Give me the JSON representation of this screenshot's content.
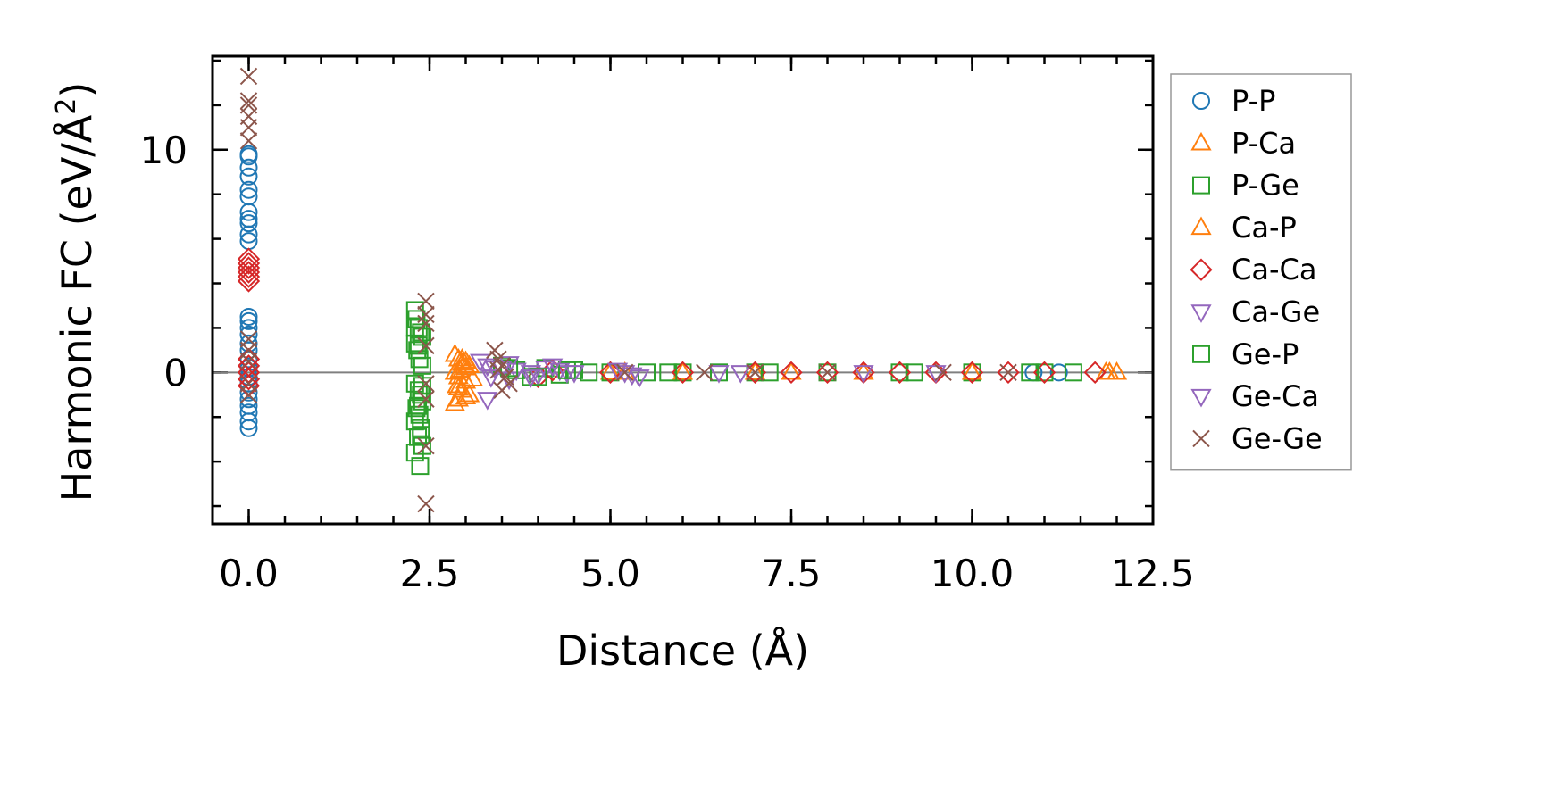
{
  "chart_data": {
    "type": "scatter",
    "xlabel": "Distance (Å)",
    "ylabel": "Harmonic FC (eV/Å²)",
    "ylabel_main": "Harmonic FC (eV/Å",
    "ylabel_sup": "2",
    "ylabel_close": ")",
    "xlim": [
      -0.5,
      12.5
    ],
    "ylim": [
      -6.8,
      14.2
    ],
    "x_ticks": [
      {
        "value": 0.0,
        "label": "0.0"
      },
      {
        "value": 2.5,
        "label": "2.5"
      },
      {
        "value": 5.0,
        "label": "5.0"
      },
      {
        "value": 7.5,
        "label": "7.5"
      },
      {
        "value": 10.0,
        "label": "10.0"
      },
      {
        "value": 12.5,
        "label": "12.5"
      }
    ],
    "y_ticks": [
      {
        "value": 0,
        "label": "0"
      },
      {
        "value": 10,
        "label": "10"
      }
    ],
    "x_minor_step": 0.5,
    "y_minor_step": 2,
    "zero_line": true,
    "grid": false,
    "legend_position": "outside-right",
    "series": [
      {
        "name": "P-P",
        "marker": "circle",
        "color": "#1f77b4",
        "x": [
          0,
          0,
          0,
          0,
          0,
          0,
          0,
          0,
          0,
          0,
          0,
          0,
          0,
          0,
          0,
          0,
          0,
          0,
          0,
          0,
          0,
          0,
          0,
          0,
          0,
          0,
          0,
          10.85,
          11.2
        ],
        "y": [
          9.8,
          9.7,
          9.2,
          8.8,
          8.2,
          7.9,
          7.2,
          6.9,
          6.7,
          6.2,
          5.9,
          2.5,
          2.3,
          2.0,
          1.7,
          1.3,
          1.0,
          0.6,
          0.2,
          -0.2,
          -0.5,
          -0.9,
          -1.2,
          -1.5,
          -1.8,
          -2.2,
          -2.5,
          0,
          0
        ]
      },
      {
        "name": "P-Ca",
        "marker": "triangle-up",
        "color": "#ff7f0e",
        "x": [
          2.85,
          2.9,
          2.95,
          3.0,
          2.85,
          2.9,
          3.0,
          2.88,
          2.95,
          3.05,
          2.9,
          3.0,
          2.85,
          2.92,
          5.0,
          7.5,
          11.9,
          12.0
        ],
        "y": [
          0.8,
          0.6,
          0.4,
          0.2,
          0.0,
          -0.2,
          -0.4,
          -0.6,
          -0.8,
          -1.0,
          -1.2,
          0.5,
          -1.4,
          0.1,
          0,
          0,
          0,
          0
        ]
      },
      {
        "name": "P-Ge",
        "marker": "square",
        "color": "#2ca02c",
        "x": [
          2.3,
          2.32,
          2.35,
          2.38,
          2.4,
          2.3,
          2.33,
          2.36,
          2.4,
          2.3,
          2.35,
          2.38,
          2.4,
          2.32,
          2.36,
          2.3,
          2.38,
          2.34,
          2.4,
          2.3,
          2.37,
          3.5,
          3.7,
          3.9,
          4.1,
          4.3,
          4.5,
          4.7,
          5.0,
          5.5,
          6.0,
          6.5,
          7.0,
          8.0,
          9.0,
          10.0,
          11.0,
          11.4
        ],
        "y": [
          2.8,
          2.4,
          2.0,
          1.8,
          1.6,
          1.3,
          1.0,
          0.6,
          0.3,
          -0.5,
          -0.8,
          -1.0,
          -1.3,
          -1.6,
          -1.9,
          -2.2,
          -2.5,
          -2.9,
          -3.3,
          -3.6,
          -4.2,
          0.3,
          0.1,
          -0.2,
          0.2,
          -0.1,
          0.1,
          0,
          0,
          0,
          0,
          0,
          0,
          0,
          0,
          0,
          0,
          0
        ]
      },
      {
        "name": "Ca-P",
        "marker": "triangle-up",
        "color": "#ff7f0e",
        "x": [
          2.95,
          3.05,
          3.1,
          2.9,
          3.0,
          5.2,
          6.0,
          7.0,
          8.5,
          10.0,
          11.85
        ],
        "y": [
          0.6,
          0.3,
          -0.3,
          -0.7,
          -1.1,
          0,
          0,
          0,
          0,
          0,
          0
        ]
      },
      {
        "name": "Ca-Ca",
        "marker": "diamond",
        "color": "#d62728",
        "x": [
          0,
          0,
          0,
          0,
          0,
          0,
          0,
          0,
          0,
          0,
          0,
          4.0,
          4.2,
          5.0,
          6.0,
          7.0,
          7.5,
          8.0,
          8.5,
          9.0,
          9.5,
          10.0,
          10.5,
          11.0,
          11.7
        ],
        "y": [
          5.1,
          4.9,
          4.7,
          4.5,
          4.3,
          4.1,
          0.6,
          0.3,
          0.0,
          -0.3,
          -0.6,
          -0.2,
          0.1,
          0,
          0,
          0,
          0,
          0,
          0,
          0,
          0,
          0,
          0,
          0,
          0
        ]
      },
      {
        "name": "Ca-Ge",
        "marker": "triangle-down",
        "color": "#9467bd",
        "x": [
          3.2,
          3.3,
          3.5,
          3.7,
          3.9,
          4.1,
          4.3,
          3.35,
          3.6,
          4.0,
          4.4,
          5.2,
          5.4,
          6.5,
          8.5
        ],
        "y": [
          0.5,
          0.3,
          0.2,
          0.1,
          0.0,
          0.2,
          0.1,
          -0.2,
          -0.3,
          -0.1,
          0.0,
          0.0,
          -0.2,
          0,
          0
        ]
      },
      {
        "name": "Ge-P",
        "marker": "square",
        "color": "#2ca02c",
        "x": [
          2.3,
          2.35,
          2.4,
          2.34,
          2.38,
          3.6,
          4.0,
          4.4,
          5.8,
          7.2,
          9.2,
          10.8
        ],
        "y": [
          2.0,
          1.2,
          -0.6,
          -1.5,
          -2.8,
          0.2,
          -0.2,
          0.1,
          0,
          0,
          0,
          0
        ]
      },
      {
        "name": "Ge-Ca",
        "marker": "triangle-down",
        "color": "#9467bd",
        "x": [
          3.3,
          3.4,
          3.6,
          3.9,
          4.2,
          4.5,
          5.1,
          5.3,
          6.8,
          9.5
        ],
        "y": [
          -1.2,
          0.2,
          0.4,
          -0.2,
          0.3,
          0.0,
          0.1,
          -0.1,
          0,
          0
        ]
      },
      {
        "name": "Ge-Ge",
        "marker": "x",
        "color": "#8c564b",
        "x": [
          0,
          0,
          0,
          0,
          0,
          0,
          0,
          0,
          0,
          0,
          0,
          2.45,
          2.45,
          2.45,
          2.45,
          2.45,
          2.45,
          2.45,
          2.45,
          3.4,
          3.45,
          3.5,
          3.55,
          3.6,
          3.5,
          3.45,
          5.2,
          6.3,
          7.0,
          8.0,
          9.6,
          10.5
        ],
        "y": [
          13.3,
          12.2,
          12.0,
          11.5,
          11.0,
          10.4,
          1.5,
          1.0,
          0.5,
          -0.5,
          -1.0,
          3.2,
          2.6,
          2.2,
          1.2,
          -0.5,
          -1.2,
          -3.3,
          -5.9,
          1.0,
          0.6,
          0.3,
          -0.2,
          -0.5,
          -0.8,
          0.1,
          0,
          0,
          0,
          0,
          0,
          0
        ]
      }
    ]
  }
}
